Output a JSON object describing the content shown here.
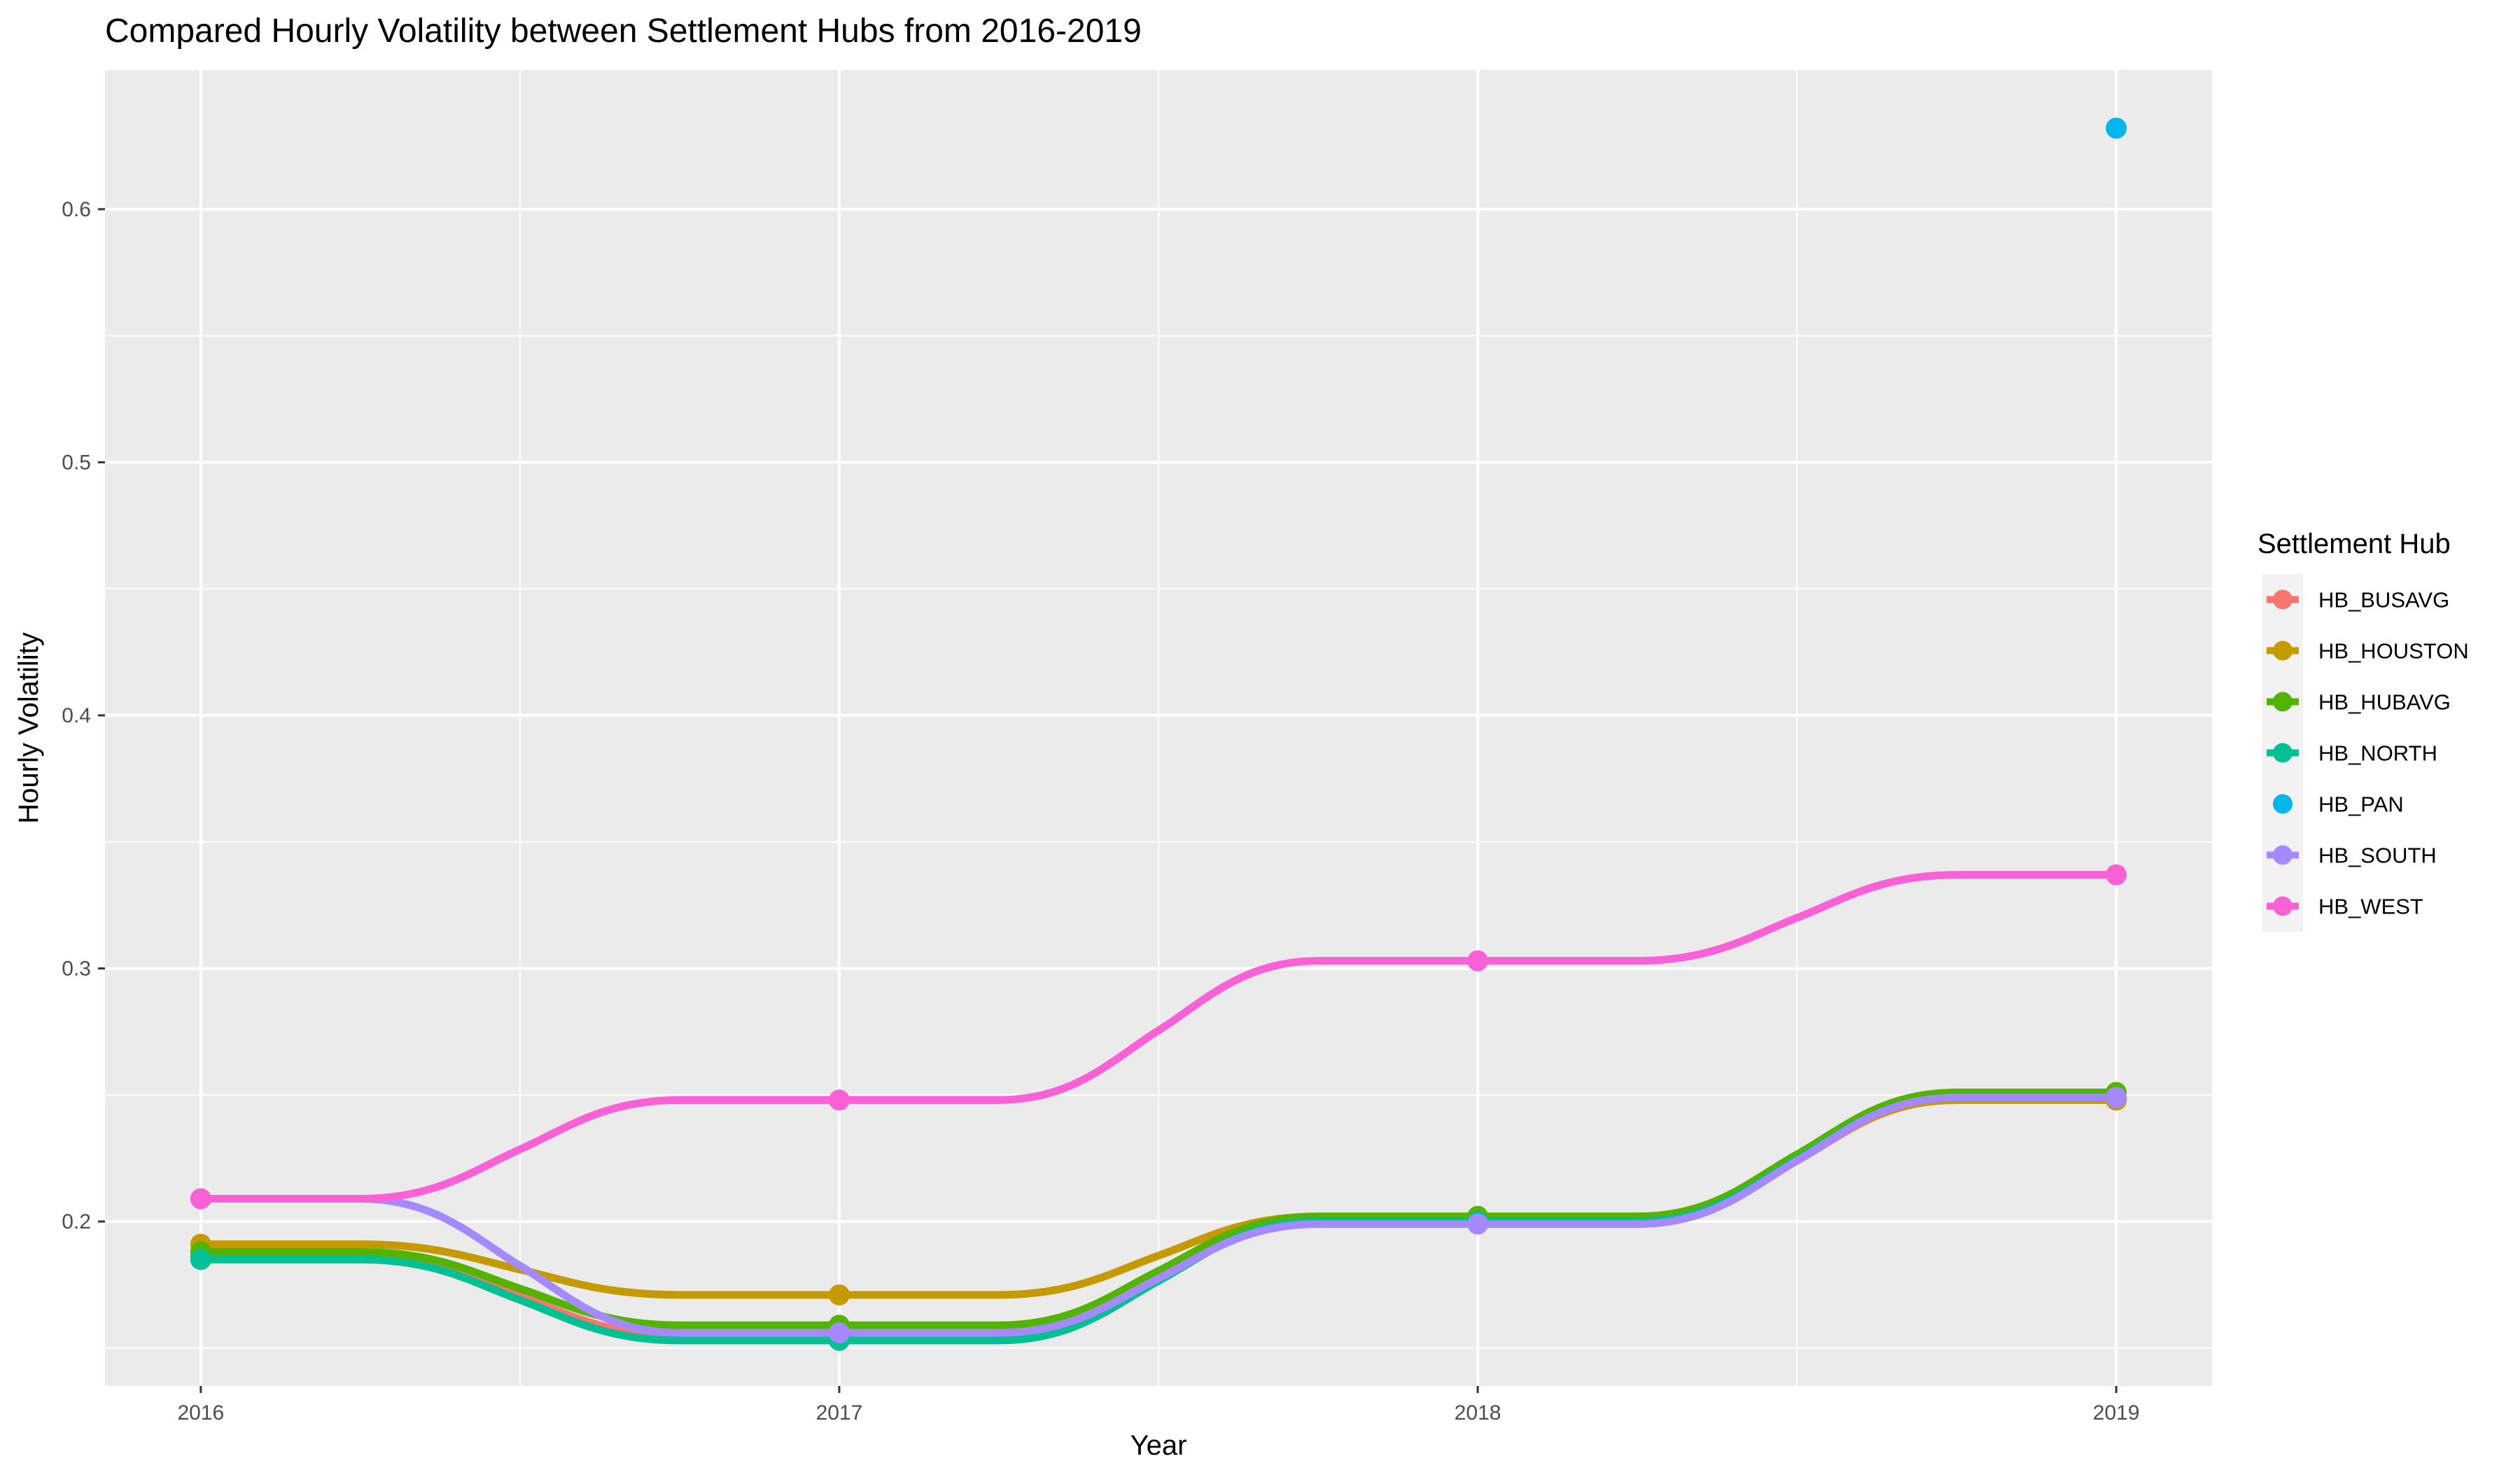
{
  "chart_data": {
    "type": "line",
    "title": "Compared Hourly Volatility between Settlement Hubs from 2016-2019",
    "xlabel": "Year",
    "ylabel": "Hourly Volatility",
    "x": [
      2016,
      2017,
      2018,
      2019
    ],
    "x_tick_labels": [
      "2016",
      "2017",
      "2018",
      "2019"
    ],
    "xlim": [
      2015.85,
      2019.15
    ],
    "ylim": [
      0.135,
      0.655
    ],
    "y_ticks": [
      0.2,
      0.3,
      0.4,
      0.5,
      0.6
    ],
    "y_tick_labels": [
      "0.2",
      "0.3",
      "0.4",
      "0.5",
      "0.6"
    ],
    "grid": true,
    "background": "#EBEBEB",
    "legend": {
      "title": "Settlement Hub",
      "placement": "right"
    },
    "series": [
      {
        "name": "HB_BUSAVG",
        "color": "#F8766D",
        "values": [
          0.186,
          0.155,
          0.2,
          0.248
        ],
        "line": true
      },
      {
        "name": "HB_HOUSTON",
        "color": "#C49A00",
        "values": [
          0.191,
          0.171,
          0.202,
          0.248
        ],
        "line": true
      },
      {
        "name": "HB_HUBAVG",
        "color": "#53B400",
        "values": [
          0.188,
          0.159,
          0.202,
          0.251
        ],
        "line": true
      },
      {
        "name": "HB_NORTH",
        "color": "#00C094",
        "values": [
          0.185,
          0.153,
          0.2,
          0.249
        ],
        "line": true
      },
      {
        "name": "HB_PAN",
        "color": "#00B6EB",
        "values": [
          null,
          null,
          null,
          0.632
        ],
        "line": false
      },
      {
        "name": "HB_SOUTH",
        "color": "#A58AFF",
        "values": [
          0.209,
          0.156,
          0.199,
          0.249
        ],
        "line": true
      },
      {
        "name": "HB_WEST",
        "color": "#FB61D7",
        "values": [
          0.209,
          0.248,
          0.303,
          0.337
        ],
        "line": true
      }
    ]
  }
}
